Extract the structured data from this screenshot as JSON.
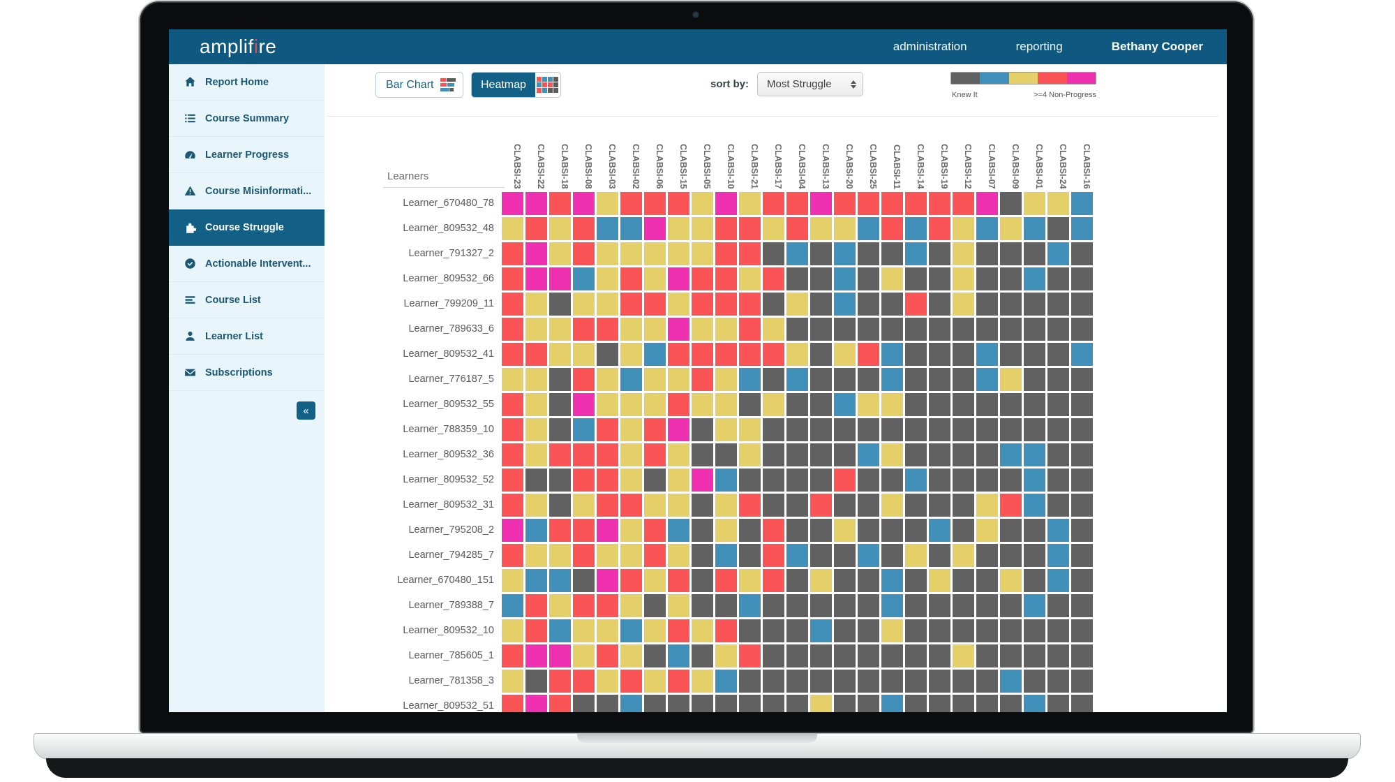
{
  "header": {
    "logo": {
      "text_before": "amplif",
      "accent": "i",
      "text_after": "re"
    },
    "nav": [
      {
        "label": "administration",
        "user": false
      },
      {
        "label": "reporting",
        "user": false
      },
      {
        "label": "Bethany Cooper",
        "user": true
      }
    ]
  },
  "sidebar": {
    "items": [
      {
        "label": "Report Home",
        "icon": "home",
        "selected": false
      },
      {
        "label": "Course Summary",
        "icon": "list",
        "selected": false
      },
      {
        "label": "Learner Progress",
        "icon": "gauge",
        "selected": false
      },
      {
        "label": "Course Misinformati...",
        "icon": "warning",
        "selected": false
      },
      {
        "label": "Course Struggle",
        "icon": "puzzle",
        "selected": true
      },
      {
        "label": "Actionable Intervent...",
        "icon": "check-circle",
        "selected": false
      },
      {
        "label": "Course List",
        "icon": "stack",
        "selected": false
      },
      {
        "label": "Learner List",
        "icon": "person",
        "selected": false
      },
      {
        "label": "Subscriptions",
        "icon": "envelope",
        "selected": false
      }
    ],
    "collapse_label": "«"
  },
  "toolbar": {
    "bar_chart_label": "Bar Chart",
    "heatmap_label": "Heatmap",
    "sort_label": "sort by:",
    "sort_value": "Most Struggle"
  },
  "chart_data": {
    "type": "heatmap",
    "row_header": "Learners",
    "legend": {
      "left_label": "Knew It",
      "right_label": ">=4 Non-Progress",
      "segment_order": [
        "G",
        "B",
        "Y",
        "R",
        "M"
      ]
    },
    "palette": {
      "G": "#616161",
      "B": "#4190ba",
      "Y": "#e4cf68",
      "R": "#fa5457",
      "M": "#ee30b1"
    },
    "palette_meaning": {
      "G": "Knew It",
      "B": "low struggle",
      "Y": "medium struggle",
      "R": "high struggle",
      "M": ">=4 Non-Progress"
    },
    "columns": [
      "CLABSI-23",
      "CLABSI-22",
      "CLABSI-18",
      "CLABSI-08",
      "CLABSI-03",
      "CLABSI-02",
      "CLABSI-06",
      "CLABSI-15",
      "CLABSI-05",
      "CLABSI-10",
      "CLABSI-21",
      "CLABSI-17",
      "CLABSI-04",
      "CLABSI-13",
      "CLABSI-20",
      "CLABSI-25",
      "CLABSI-11",
      "CLABSI-14",
      "CLABSI-19",
      "CLABSI-12",
      "CLABSI-07",
      "CLABSI-09",
      "CLABSI-01",
      "CLABSI-24",
      "CLABSI-16"
    ],
    "rows": [
      {
        "label": "Learner_670480_78",
        "cells": "MMRMYRRRYMYRRMRRRRRRMGYYB"
      },
      {
        "label": "Learner_809532_48",
        "cells": "YRYRBBMYYRRYRYYBRBRYBYBGB"
      },
      {
        "label": "Learner_791327_2",
        "cells": "RMYRYYYYYRRGBGBGGBGYGGGBG"
      },
      {
        "label": "Learner_809532_66",
        "cells": "RMMBYRYMRRYRGGBGYGGYGGBGG"
      },
      {
        "label": "Learner_799209_11",
        "cells": "RYGYYRRYRRRGYGBGGRGYGGGGG"
      },
      {
        "label": "Learner_789633_6",
        "cells": "RYYRRYYMYYRYGGGGGGGGGGGGG"
      },
      {
        "label": "Learner_809532_41",
        "cells": "RRYYGYBRRRRRYGYRBGGGBGGGB"
      },
      {
        "label": "Learner_776187_5",
        "cells": "YYGRYBYYRYBGBGGGBGGGBYGGG"
      },
      {
        "label": "Learner_809532_55",
        "cells": "RYGMYYYRYYGYGGBYYGGGGGGGG"
      },
      {
        "label": "Learner_788359_10",
        "cells": "RYGBRYRMGYYGGGGGGGGGGGGGG"
      },
      {
        "label": "Learner_809532_36",
        "cells": "RYRRRYRYGGYGGGGBYGGGGBBGG"
      },
      {
        "label": "Learner_809532_52",
        "cells": "RGGRRYGYMBGGGGRGGBGGGGBGG"
      },
      {
        "label": "Learner_809532_31",
        "cells": "RYGYRRYYGYRGGRGGYGGGYRBGG"
      },
      {
        "label": "Learner_795208_2",
        "cells": "MBRRMYRBGYGRGGYGGGBGYGGBG"
      },
      {
        "label": "Learner_794285_7",
        "cells": "RYYRYYRYGBGRBGGBGYGYGGGBG"
      },
      {
        "label": "Learner_670480_151",
        "cells": "YBBGMRYRGRYRGYGGBGYGGYGBG"
      },
      {
        "label": "Learner_789388_7",
        "cells": "BRYRRYGYGGBGGGGGBGGGGGBGG"
      },
      {
        "label": "Learner_809532_10",
        "cells": "YRBYYBYRYRGGGBGGYGGGGGGGG"
      },
      {
        "label": "Learner_785605_1",
        "cells": "RMMYRYGBGYRGGGGGGGGYGGGGG"
      },
      {
        "label": "Learner_781358_3",
        "cells": "YGRRYRYRYBGGGGGGGGGGGBGGG"
      },
      {
        "label": "Learner_809532_51",
        "cells": "RMRGGBGGGGGGGYGGBGGGGGBGG"
      }
    ]
  }
}
